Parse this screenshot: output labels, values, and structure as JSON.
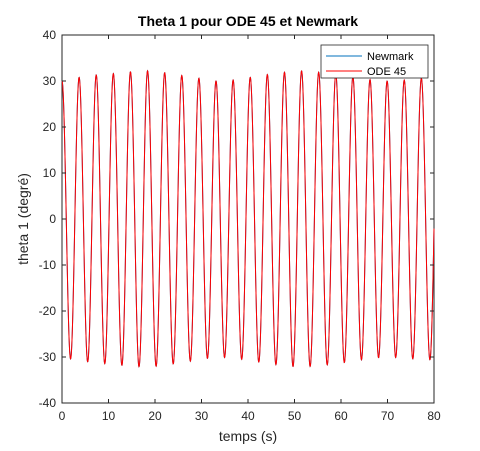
{
  "chart_data": {
    "type": "line",
    "title": "Theta 1 pour ODE 45 et Newmark",
    "xlabel": "temps (s)",
    "ylabel": "theta 1 (degré)",
    "xlim": [
      0,
      80
    ],
    "ylim": [
      -40,
      40
    ],
    "xticks": [
      "0",
      "10",
      "20",
      "30",
      "40",
      "50",
      "60",
      "70",
      "80"
    ],
    "yticks": [
      "-40",
      "-30",
      "-20",
      "-10",
      "0",
      "10",
      "20",
      "30",
      "40"
    ],
    "grid": false,
    "legend_position": "top-right",
    "signal": {
      "initial_value": 30,
      "period_s": 3.68,
      "peaks_deg": [
        30.0,
        30.8,
        31.3,
        31.6,
        32.0,
        32.2,
        31.8,
        31.2,
        30.6,
        30.0,
        30.2,
        30.8,
        31.4,
        31.9,
        32.2,
        31.9,
        31.5,
        30.9,
        30.3,
        30.0,
        30.2,
        30.6
      ]
    },
    "series": [
      {
        "name": "Newmark",
        "color": "#0072BD"
      },
      {
        "name": "ODE 45",
        "color": "#FF0000"
      }
    ]
  }
}
